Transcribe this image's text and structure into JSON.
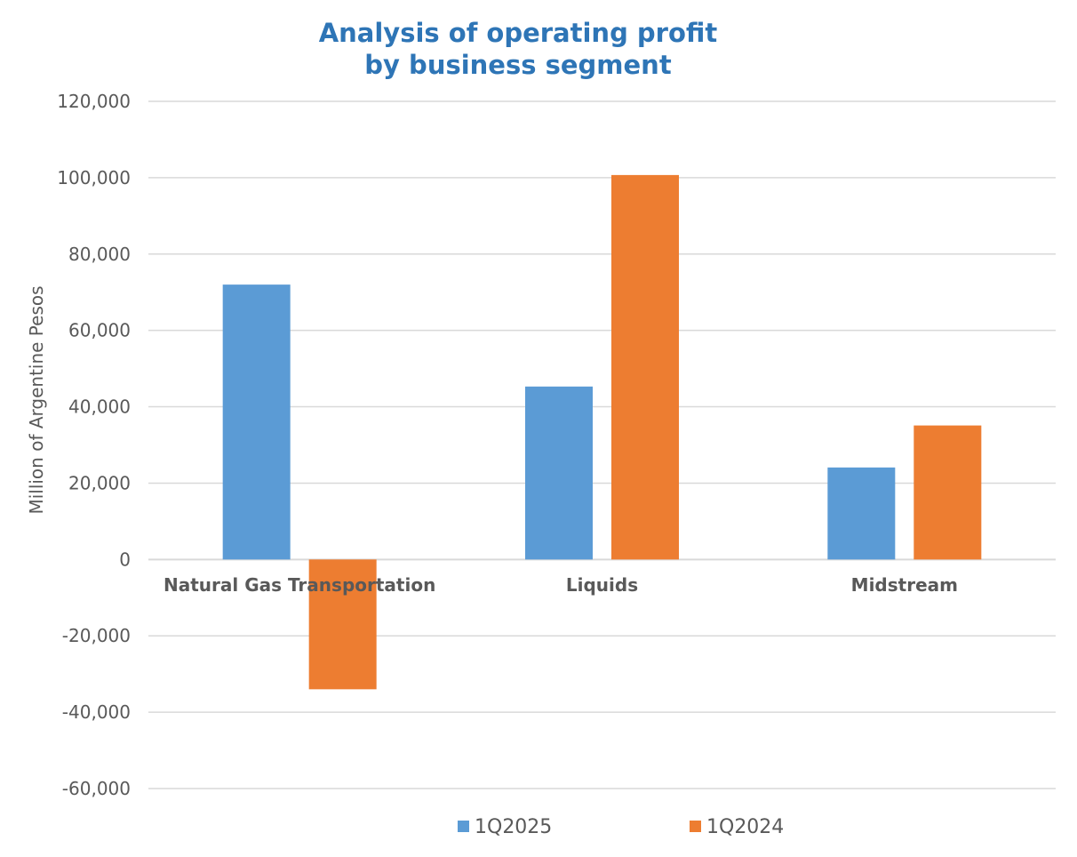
{
  "chart_data": {
    "type": "bar",
    "title_lines": [
      "Analysis of operating profit",
      "by business segment"
    ],
    "ylabel": "Million of Argentine Pesos",
    "xlabel": "",
    "ylim": [
      -60000,
      120000
    ],
    "yticks": [
      120000,
      100000,
      80000,
      60000,
      40000,
      20000,
      0,
      -20000,
      -40000,
      -60000
    ],
    "ytick_labels": [
      "120,000",
      "100,000",
      "80,000",
      "60,000",
      "40,000",
      "20,000",
      "0",
      "-20,000",
      "-40,000",
      "-60,000"
    ],
    "categories": [
      "Natural Gas Transportation",
      "Liquids",
      "Midstream"
    ],
    "series": [
      {
        "name": "1Q2025",
        "color": "#5b9bd5",
        "values": [
          72000,
          45300,
          24100
        ]
      },
      {
        "name": "1Q2024",
        "color": "#ed7d31",
        "values": [
          -34000,
          100700,
          35100
        ]
      }
    ],
    "grid": true,
    "legend_position": "bottom"
  }
}
